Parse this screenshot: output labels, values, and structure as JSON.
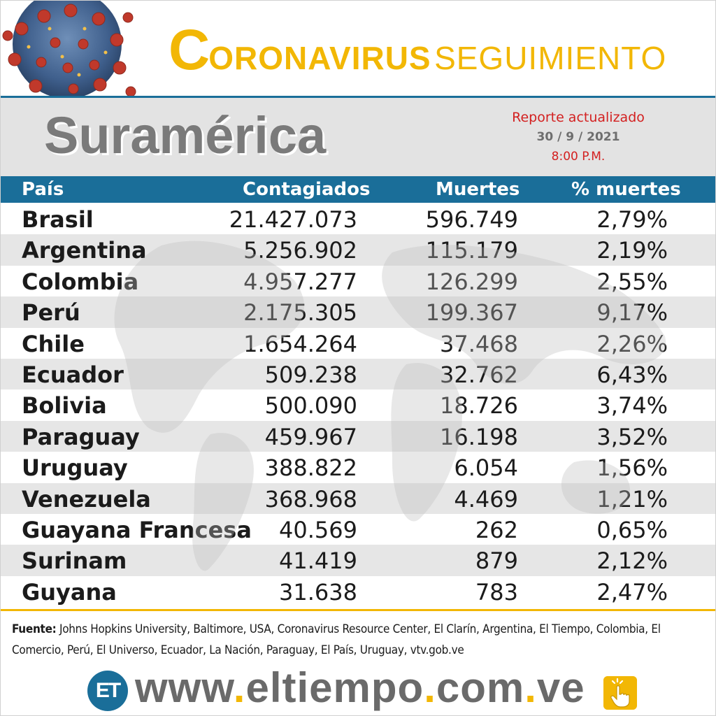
{
  "header": {
    "title_initial": "C",
    "title_rest": "ORONAVIRUS",
    "title_second": "SEGUIMIENTO",
    "virus_icon": "coronavirus-icon"
  },
  "region": {
    "title": "Suramérica",
    "report_label": "Reporte actualizado",
    "report_date": "30 / 9 / 2021",
    "report_time": "8:00 P.M."
  },
  "table": {
    "columns": [
      "País",
      "Contagiados",
      "Muertes",
      "% muertes"
    ],
    "rows": [
      {
        "pais": "Brasil",
        "contagiados": "21.427.073",
        "muertes": "596.749",
        "pct": "2,79%"
      },
      {
        "pais": "Argentina",
        "contagiados": "5.256.902",
        "muertes": "115.179",
        "pct": "2,19%"
      },
      {
        "pais": "Colombia",
        "contagiados": "4.957.277",
        "muertes": "126.299",
        "pct": "2,55%"
      },
      {
        "pais": "Perú",
        "contagiados": "2.175.305",
        "muertes": "199.367",
        "pct": "9,17%"
      },
      {
        "pais": "Chile",
        "contagiados": "1.654.264",
        "muertes": "37.468",
        "pct": "2,26%"
      },
      {
        "pais": "Ecuador",
        "contagiados": "509.238",
        "muertes": "32.762",
        "pct": "6,43%"
      },
      {
        "pais": "Bolivia",
        "contagiados": "500.090",
        "muertes": "18.726",
        "pct": "3,74%"
      },
      {
        "pais": "Paraguay",
        "contagiados": "459.967",
        "muertes": "16.198",
        "pct": "3,52%"
      },
      {
        "pais": "Uruguay",
        "contagiados": "388.822",
        "muertes": "6.054",
        "pct": "1,56%"
      },
      {
        "pais": "Venezuela",
        "contagiados": "368.968",
        "muertes": "4.469",
        "pct": "1,21%"
      },
      {
        "pais": "Guayana Francesa",
        "contagiados": "40.569",
        "muertes": "262",
        "pct": "0,65%"
      },
      {
        "pais": "Surinam",
        "contagiados": "41.419",
        "muertes": "879",
        "pct": "2,12%"
      },
      {
        "pais": "Guyana",
        "contagiados": "31.638",
        "muertes": "783",
        "pct": "2,47%"
      }
    ]
  },
  "source": {
    "label": "Fuente:",
    "text": " Johns Hopkins University, Baltimore, USA, Coronavirus Resource Center,  El Clarín, Argentina, El Tiempo, Colombia, El Comercio, Perú, El Universo, Ecuador, La Nación, Paraguay, El País, Uruguay, vtv.gob.ve"
  },
  "footer": {
    "logo_text": "ET",
    "url_part1": "www",
    "url_part2": "eltiempo",
    "url_part3": "com",
    "url_part4": "ve",
    "dot": ".",
    "hand_icon": "hand-pointer-icon"
  },
  "colors": {
    "brand_blue": "#1a6e99",
    "title_yellow": "#f2b705",
    "report_red": "#d32020",
    "region_gray": "#7a7a7a",
    "row_alt": "#e6e6e6"
  }
}
